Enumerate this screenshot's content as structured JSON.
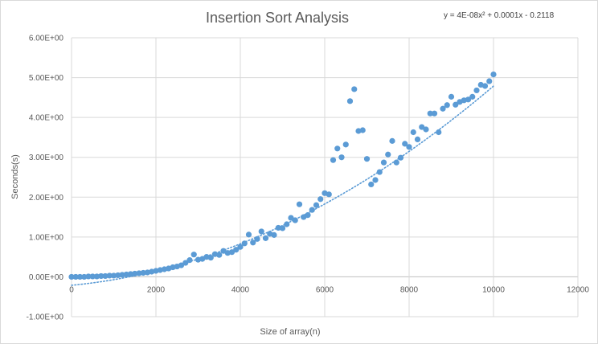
{
  "chart_data": {
    "type": "scatter",
    "title": "Insertion Sort Analysis",
    "xlabel": "Size of array(n)",
    "ylabel": "Seconds(s)",
    "xlim": [
      0,
      12000
    ],
    "ylim": [
      -1,
      6
    ],
    "x_ticks": [
      0,
      2000,
      4000,
      6000,
      8000,
      10000,
      12000
    ],
    "x_tick_labels": [
      "0",
      "2000",
      "4000",
      "6000",
      "8000",
      "10000",
      "12000"
    ],
    "y_ticks": [
      -1,
      0,
      1,
      2,
      3,
      4,
      5,
      6
    ],
    "y_tick_labels": [
      "-1.00E+00",
      "0.00E+00",
      "1.00E+00",
      "2.00E+00",
      "3.00E+00",
      "4.00E+00",
      "5.00E+00",
      "6.00E+00"
    ],
    "grid": true,
    "marker_color": "#5b9bd5",
    "trendline": {
      "type": "polynomial",
      "equation": "y = 4E-08x² + 0.0001x - 0.2118",
      "coefficients": [
        4e-08,
        0.0001,
        -0.2118
      ],
      "color": "#5b9bd5",
      "style": "dotted"
    },
    "series": [
      {
        "x": [
          0,
          100,
          200,
          300,
          400,
          500,
          600,
          700,
          800,
          900,
          1000,
          1100,
          1200,
          1300,
          1400,
          1500,
          1600,
          1700,
          1800,
          1900,
          2000,
          2100,
          2200,
          2300,
          2400,
          2500,
          2600,
          2700,
          2800,
          2900,
          3000,
          3100,
          3200,
          3300,
          3400,
          3500,
          3600,
          3700,
          3800,
          3900,
          4000,
          4100,
          4200,
          4300,
          4400,
          4500,
          4600,
          4700,
          4800,
          4900,
          5000,
          5100,
          5200,
          5300,
          5400,
          5500,
          5600,
          5700,
          5800,
          5900,
          6000,
          6100,
          6200,
          6300,
          6400,
          6500,
          6600,
          6700,
          6800,
          6900,
          7000,
          7100,
          7200,
          7300,
          7400,
          7500,
          7600,
          7700,
          7800,
          7900,
          8000,
          8100,
          8200,
          8300,
          8400,
          8500,
          8600,
          8700,
          8800,
          8900,
          9000,
          9100,
          9200,
          9300,
          9400,
          9500,
          9600,
          9700,
          9800,
          9900,
          10000
        ],
        "values": [
          0.0,
          0.0,
          0.0,
          0.0,
          0.01,
          0.01,
          0.01,
          0.02,
          0.02,
          0.03,
          0.03,
          0.04,
          0.05,
          0.06,
          0.07,
          0.08,
          0.09,
          0.1,
          0.11,
          0.13,
          0.15,
          0.17,
          0.19,
          0.21,
          0.24,
          0.26,
          0.29,
          0.35,
          0.42,
          0.56,
          0.43,
          0.45,
          0.5,
          0.48,
          0.57,
          0.55,
          0.65,
          0.6,
          0.62,
          0.68,
          0.75,
          0.84,
          1.06,
          0.86,
          0.95,
          1.14,
          0.97,
          1.08,
          1.05,
          1.23,
          1.22,
          1.32,
          1.48,
          1.42,
          1.82,
          1.5,
          1.55,
          1.68,
          1.8,
          1.95,
          2.1,
          2.07,
          2.93,
          3.22,
          3.0,
          3.32,
          4.41,
          4.71,
          3.66,
          3.68,
          2.96,
          2.32,
          2.43,
          2.63,
          2.87,
          3.07,
          3.41,
          2.87,
          2.99,
          3.34,
          3.26,
          3.63,
          3.45,
          3.76,
          3.7,
          4.1,
          4.1,
          3.63,
          4.22,
          4.31,
          4.52,
          4.32,
          4.39,
          4.43,
          4.45,
          4.52,
          4.68,
          4.82,
          4.79,
          4.91,
          5.08
        ]
      }
    ]
  }
}
